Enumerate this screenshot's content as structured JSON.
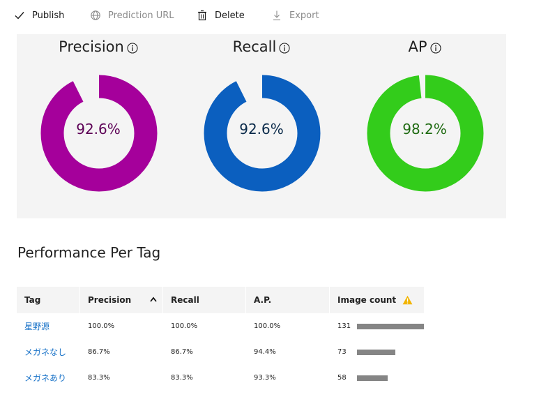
{
  "toolbar": {
    "publish": {
      "label": "Publish",
      "icon": "checkmark-icon",
      "enabled": true
    },
    "prediction_url": {
      "label": "Prediction URL",
      "icon": "globe-icon",
      "enabled": false
    },
    "delete": {
      "label": "Delete",
      "icon": "trash-icon",
      "enabled": true
    },
    "export": {
      "label": "Export",
      "icon": "download-icon",
      "enabled": false
    }
  },
  "metrics": [
    {
      "title": "Precision",
      "value_text": "92.6%",
      "value": 92.6,
      "color": "#a5009b",
      "text_color": "#5c0055"
    },
    {
      "title": "Recall",
      "value_text": "92.6%",
      "value": 92.6,
      "color": "#0b5fbf",
      "text_color": "#0a2a4a"
    },
    {
      "title": "AP",
      "value_text": "98.2%",
      "value": 98.2,
      "color": "#33cc1b",
      "text_color": "#1f6b12"
    }
  ],
  "section_title": "Performance Per Tag",
  "table": {
    "headers": {
      "tag": "Tag",
      "precision": "Precision",
      "recall": "Recall",
      "ap": "A.P.",
      "image_count": "Image count"
    },
    "sorted_column": "precision",
    "sort_direction": "descending",
    "rows": [
      {
        "tag": "星野源",
        "precision": "100.0%",
        "recall": "100.0%",
        "ap": "100.0%",
        "image_count": "131",
        "count": 131
      },
      {
        "tag": "メガネなし",
        "precision": "86.7%",
        "recall": "86.7%",
        "ap": "94.4%",
        "image_count": "73",
        "count": 73
      },
      {
        "tag": "メガネあり",
        "precision": "83.3%",
        "recall": "83.3%",
        "ap": "93.3%",
        "image_count": "58",
        "count": 58
      }
    ],
    "max_count": 131
  },
  "colors": {
    "link": "#1a73c8",
    "bar": "#858585",
    "warning": "#f2b400",
    "panel_bg": "#f4f4f4"
  }
}
